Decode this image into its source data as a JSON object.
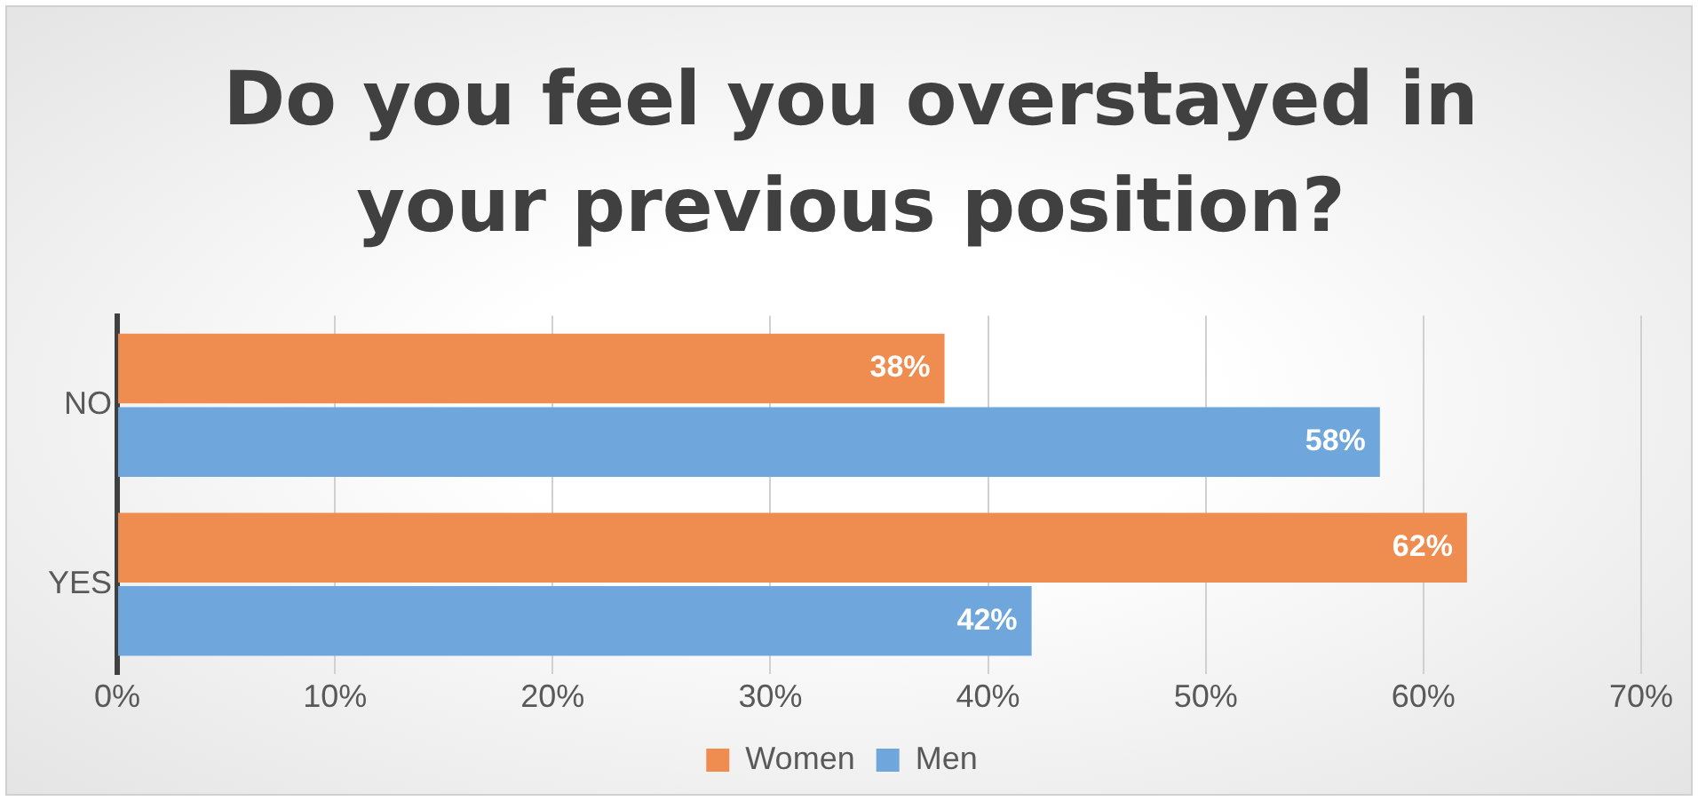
{
  "chart_data": {
    "type": "bar",
    "orientation": "horizontal",
    "title": "Do you feel you overstayed in your previous position?",
    "categories": [
      "NO",
      "YES"
    ],
    "series": [
      {
        "name": "Women",
        "color": "#ef8c4f",
        "values": [
          38,
          62
        ],
        "value_labels": [
          "38%",
          "62%"
        ]
      },
      {
        "name": "Men",
        "color": "#6fa7dc",
        "values": [
          58,
          42
        ],
        "value_labels": [
          "58%",
          "42%"
        ]
      }
    ],
    "xlim": [
      0,
      70
    ],
    "xticks": [
      {
        "value": 0,
        "label": "0%"
      },
      {
        "value": 10,
        "label": "10%"
      },
      {
        "value": 20,
        "label": "20%"
      },
      {
        "value": 30,
        "label": "30%"
      },
      {
        "value": 40,
        "label": "40%"
      },
      {
        "value": 50,
        "label": "50%"
      },
      {
        "value": 60,
        "label": "60%"
      },
      {
        "value": 70,
        "label": "70%"
      }
    ],
    "grid": "x",
    "legend": "bottom"
  }
}
